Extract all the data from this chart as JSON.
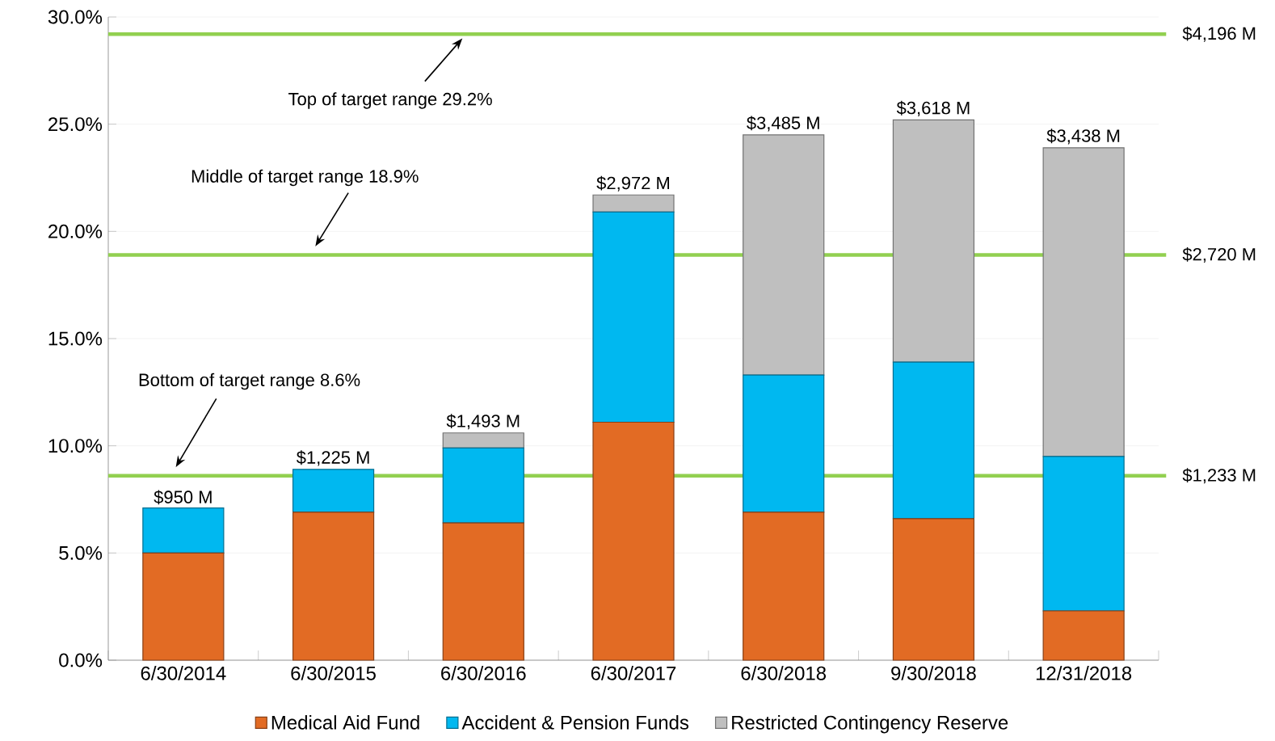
{
  "chart_data": {
    "type": "bar",
    "stacked": true,
    "categories": [
      "6/30/2014",
      "6/30/2015",
      "6/30/2016",
      "6/30/2017",
      "6/30/2018",
      "9/30/2018",
      "12/31/2018"
    ],
    "series": [
      {
        "name": "Medical Aid Fund",
        "color": "#e26b24",
        "values": [
          5.0,
          6.9,
          6.4,
          11.1,
          6.9,
          6.6,
          2.3
        ]
      },
      {
        "name": "Accident & Pension Funds",
        "color": "#00b8f0",
        "values": [
          2.1,
          2.0,
          3.5,
          9.8,
          6.4,
          7.3,
          7.2
        ]
      },
      {
        "name": "Restricted Contingency Reserve",
        "color": "#bfbfbf",
        "values": [
          0,
          0,
          0.7,
          0.8,
          11.2,
          11.3,
          14.4
        ]
      }
    ],
    "ylim": [
      0,
      30
    ],
    "yticks": [
      {
        "value": 0,
        "label": "0.0%"
      },
      {
        "value": 5,
        "label": "5.0%"
      },
      {
        "value": 10,
        "label": "10.0%"
      },
      {
        "value": 15,
        "label": "15.0%"
      },
      {
        "value": 20,
        "label": "20.0%"
      },
      {
        "value": 25,
        "label": "25.0%"
      },
      {
        "value": 30,
        "label": "30.0%"
      }
    ],
    "ref_lines": [
      {
        "axis": "y",
        "value": 29.2,
        "label": "$4,196 M",
        "color": "#92d050"
      },
      {
        "axis": "y",
        "value": 18.9,
        "label": "$2,720 M",
        "color": "#92d050"
      },
      {
        "axis": "y",
        "value": 8.6,
        "label": "$1,233 M",
        "color": "#92d050"
      }
    ],
    "annotations": [
      "Top of target range 29.2%",
      "Middle of target range 18.9%",
      "Bottom of target range 8.6%",
      {
        "text": "$950 M",
        "x": "6/30/2014",
        "y": 7.1
      },
      {
        "text": "$1,225 M",
        "x": "6/30/2015",
        "y": 8.9
      },
      {
        "text": "$1,493 M",
        "x": "6/30/2016",
        "y": 10.6
      },
      {
        "text": "$2,972 M",
        "x": "6/30/2017",
        "y": 21.7
      },
      {
        "text": "$3,485 M",
        "x": "6/30/2018",
        "y": 24.5
      },
      {
        "text": "$3,618 M",
        "x": "9/30/2018",
        "y": 25.2
      },
      {
        "text": "$3,438 M",
        "x": "12/31/2018",
        "y": 23.9
      }
    ],
    "grid": "y",
    "legend": "bottom"
  }
}
